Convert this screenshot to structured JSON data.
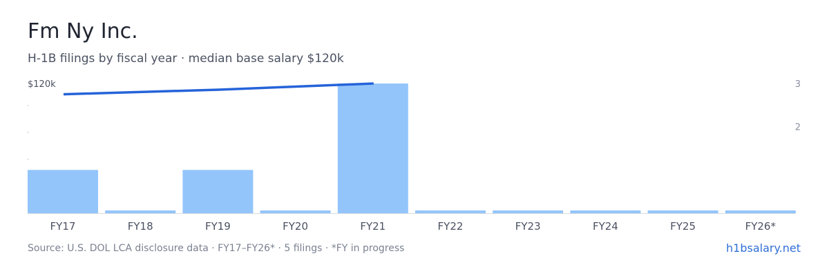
{
  "header": {
    "title": "Fm Ny Inc.",
    "subtitle": "H-1B filings by fiscal year · median base salary $120k"
  },
  "footer": {
    "source": "Source: U.S. DOL LCA disclosure data · FY17–FY26* · 5 filings · *FY in progress",
    "brand": "h1bsalary.net"
  },
  "colors": {
    "bar": "#93c5fb",
    "line": "#2563d9",
    "axis": "#d8dbe0",
    "tick_text": "#4a5161",
    "right_tick_text": "#8a90a0"
  },
  "chart_data": {
    "type": "bar",
    "categories": [
      "FY17",
      "FY18",
      "FY19",
      "FY20",
      "FY21",
      "FY22",
      "FY23",
      "FY24",
      "FY25",
      "FY26*"
    ],
    "series": [
      {
        "type": "bar",
        "axis": "right",
        "values": [
          1,
          0,
          1,
          0,
          3,
          0,
          0,
          0,
          0,
          0
        ]
      },
      {
        "type": "line",
        "axis": "left",
        "x": [
          "FY17",
          "FY19",
          "FY21"
        ],
        "values": [
          94,
          105,
          120
        ]
      }
    ],
    "left_axis": {
      "label": "$120k",
      "value": 120
    },
    "right_axis": {
      "ticks": [
        "3",
        "2"
      ],
      "ylim": [
        0,
        3
      ]
    },
    "legend": "none",
    "grid": false
  }
}
